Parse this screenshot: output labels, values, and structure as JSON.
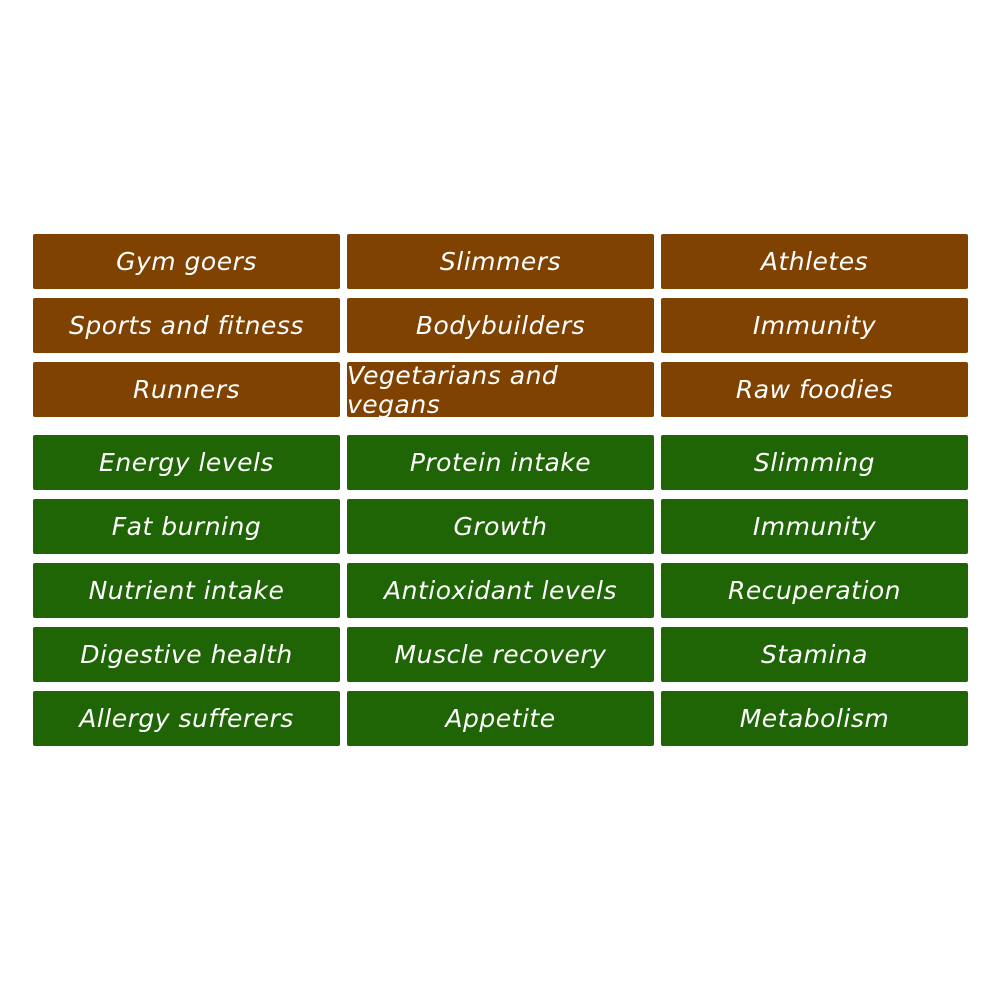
{
  "colors": {
    "audience": "#7f4200",
    "benefit": "#1f6405"
  },
  "audiences": [
    "Gym goers",
    "Slimmers",
    "Athletes",
    "Sports and fitness",
    "Bodybuilders",
    "Immunity",
    "Runners",
    "Vegetarians and vegans",
    "Raw foodies"
  ],
  "benefits": [
    "Energy levels",
    "Protein intake",
    "Slimming",
    "Fat burning",
    "Growth",
    "Immunity",
    "Nutrient intake",
    "Antioxidant levels",
    "Recuperation",
    "Digestive health",
    "Muscle recovery",
    "Stamina",
    "Allergy sufferers",
    "Appetite",
    "Metabolism"
  ]
}
